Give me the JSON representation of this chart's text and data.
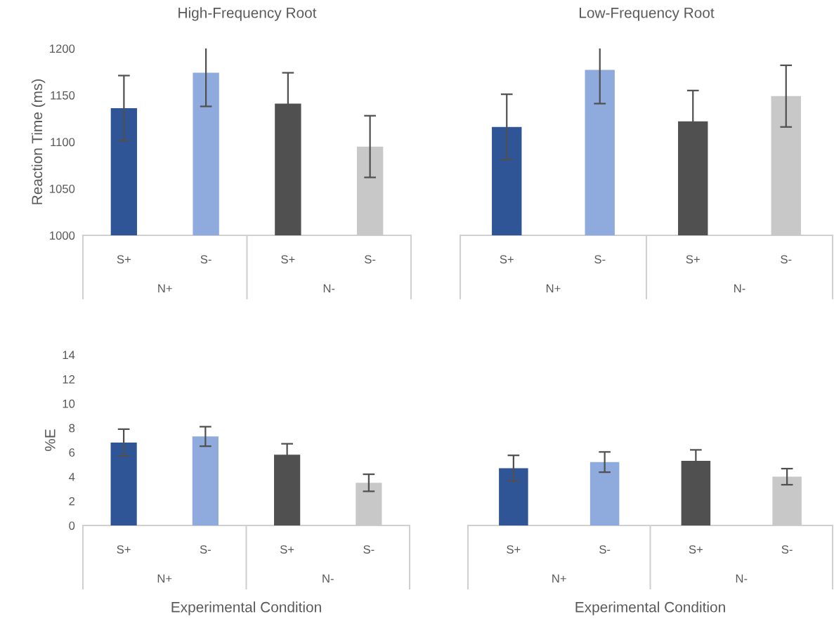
{
  "chart_data": [
    {
      "type": "bar",
      "title": "High-Frequency Root",
      "ylabel": "Reaction Time (ms)",
      "categories": [
        "S+",
        "S-",
        "S+",
        "S-"
      ],
      "values": [
        1136,
        1174,
        1141,
        1095
      ],
      "errors": [
        35,
        36,
        33,
        33
      ],
      "colors": [
        "#2f5597",
        "#8faadc",
        "#505050",
        "#c8c8c8"
      ],
      "ylim": [
        1000,
        1200
      ],
      "yticks": [
        1000,
        1050,
        1100,
        1150,
        1200
      ],
      "annotations": [
        "N+",
        "N-"
      ]
    },
    {
      "type": "bar",
      "title": "Low-Frequency Root",
      "categories": [
        "S+",
        "S-",
        "S+",
        "S-"
      ],
      "values": [
        1116,
        1177,
        1122,
        1149
      ],
      "errors": [
        35,
        36,
        33,
        33
      ],
      "colors": [
        "#2f5597",
        "#8faadc",
        "#505050",
        "#c8c8c8"
      ],
      "ylim": [
        1000,
        1200
      ],
      "tick_labels": "x",
      "annotations": [
        "N+",
        "N-"
      ]
    },
    {
      "type": "bar",
      "ylabel": "%E",
      "xlabel": "Experimental Condition",
      "categories": [
        "S+",
        "S-",
        "S+",
        "S-"
      ],
      "values": [
        6.8,
        7.3,
        5.8,
        3.5
      ],
      "errors": [
        1.1,
        0.8,
        0.9,
        0.7
      ],
      "colors": [
        "#2f5597",
        "#8faadc",
        "#505050",
        "#c8c8c8"
      ],
      "ylim": [
        0,
        14
      ],
      "yticks": [
        0,
        2,
        4,
        6,
        8,
        10,
        12,
        14
      ],
      "annotations": [
        "N+",
        "N-"
      ]
    },
    {
      "type": "bar",
      "xlabel": "Experimental Condition",
      "categories": [
        "S+",
        "S-",
        "S+",
        "S-"
      ],
      "values": [
        4.7,
        5.2,
        5.3,
        4.0
      ],
      "errors": [
        1.05,
        0.83,
        0.9,
        0.66
      ],
      "colors": [
        "#2f5597",
        "#8faadc",
        "#505050",
        "#c8c8c8"
      ],
      "ylim": [
        0,
        14
      ],
      "tick_labels": "x",
      "annotations": [
        "N+",
        "N-"
      ]
    }
  ]
}
